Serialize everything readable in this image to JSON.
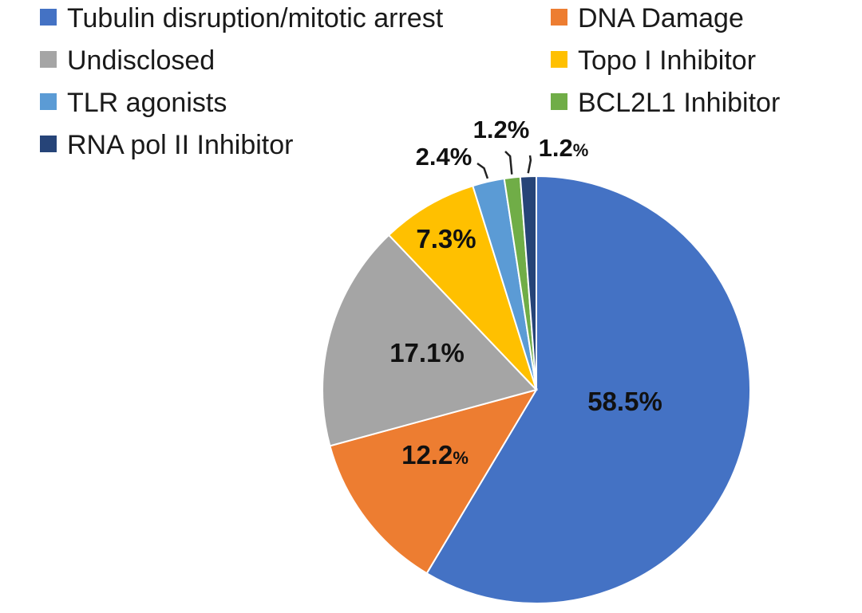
{
  "chart_data": {
    "type": "pie",
    "title": "",
    "legend_position": "top",
    "slices": [
      {
        "name": "Tubulin disruption/mitotic arrest",
        "value": 58.5,
        "label_num": "58.5",
        "label_pct": "%",
        "color": "#4472C4"
      },
      {
        "name": "DNA Damage",
        "value": 12.2,
        "label_num": "12.2",
        "label_pct": "%",
        "color": "#ED7D31"
      },
      {
        "name": "Undisclosed",
        "value": 17.1,
        "label_num": "17.1",
        "label_pct": "%",
        "color": "#A5A5A5"
      },
      {
        "name": "Topo I Inhibitor",
        "value": 7.3,
        "label_num": "7.3",
        "label_pct": "%",
        "color": "#FFC000"
      },
      {
        "name": "TLR agonists",
        "value": 2.4,
        "label_num": "2.4",
        "label_pct": "%",
        "color": "#5B9BD5"
      },
      {
        "name": "BCL2L1 Inhibitor",
        "value": 1.2,
        "label_num": "1.2",
        "label_pct": "%",
        "color": "#70AD47"
      },
      {
        "name": "RNA pol II Inhibitor",
        "value": 1.2,
        "label_num": "1.2",
        "label_pct": "%",
        "color": "#264478"
      }
    ]
  }
}
